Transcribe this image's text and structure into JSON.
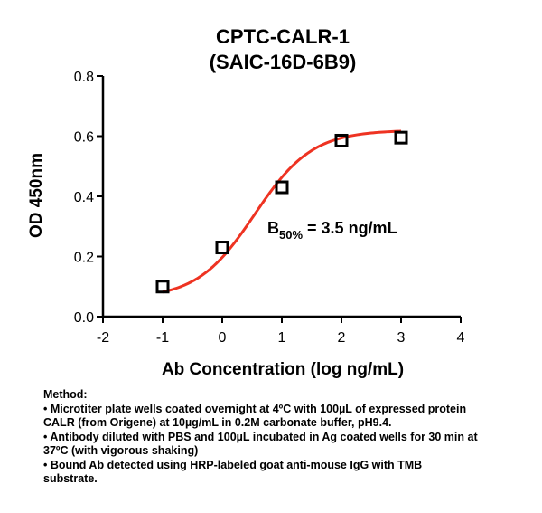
{
  "chart_data": {
    "type": "scatter",
    "title": [
      "CPTC-CALR-1",
      "(SAIC-16D-6B9)"
    ],
    "xlabel": "Ab Concentration (log ng/mL)",
    "ylabel": "OD 450nm",
    "xlim": [
      -2,
      4
    ],
    "ylim": [
      0,
      0.8
    ],
    "x_ticks": [
      "-2",
      "-1",
      "0",
      "1",
      "2",
      "3",
      "4"
    ],
    "y_ticks": [
      "0.0",
      "0.2",
      "0.4",
      "0.6",
      "0.8"
    ],
    "grid": false,
    "marker": "open-square",
    "point_color": "#000000",
    "curve_color": "#ee3322",
    "points": [
      {
        "x": -1,
        "y": 0.1
      },
      {
        "x": 0,
        "y": 0.23
      },
      {
        "x": 1,
        "y": 0.43
      },
      {
        "x": 2,
        "y": 0.585
      },
      {
        "x": 3,
        "y": 0.595
      }
    ],
    "fit": {
      "model": "four-parameter-logistic",
      "bottom": 0.06,
      "top": 0.62,
      "log_ec50": 0.544,
      "hill_slope": 0.9
    },
    "annotation": {
      "prefix": "B",
      "subscript": "50%",
      "suffix": " = 3.5 ng/mL"
    }
  },
  "method": {
    "heading": "Method:",
    "lines": [
      "• Microtiter plate wells coated overnight at 4ºC  with 100µL of expressed protein",
      "CALR (from Origene) at 10µg/mL in 0.2M carbonate buffer, pH9.4.",
      "• Antibody diluted with PBS and 100µL incubated in Ag coated wells for 30 min at",
      "37ºC (with vigorous shaking)",
      "• Bound Ab detected using HRP-labeled goat anti-mouse IgG with TMB",
      "substrate."
    ]
  }
}
